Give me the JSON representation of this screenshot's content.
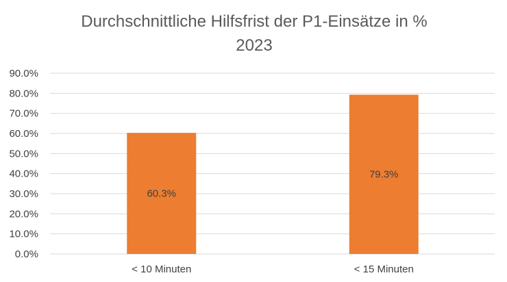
{
  "chart_data": {
    "type": "bar",
    "title": "Durchschnittliche Hilfsfrist der P1-Einsätze in %",
    "subtitle": "2023",
    "categories": [
      "< 10 Minuten",
      "< 15 Minuten"
    ],
    "values": [
      60.3,
      79.3
    ],
    "data_labels": [
      "60.3%",
      "79.3%"
    ],
    "ylim": [
      0,
      90
    ],
    "ytick_step": 10,
    "ytick_labels": [
      "0.0%",
      "10.0%",
      "20.0%",
      "30.0%",
      "40.0%",
      "50.0%",
      "60.0%",
      "70.0%",
      "80.0%",
      "90.0%"
    ],
    "xlabel": "",
    "ylabel": "",
    "grid": true,
    "legend": "none",
    "colors": {
      "bar": "#ed7d31",
      "grid": "#d9d9d9",
      "text": "#404040",
      "title": "#595959"
    }
  }
}
